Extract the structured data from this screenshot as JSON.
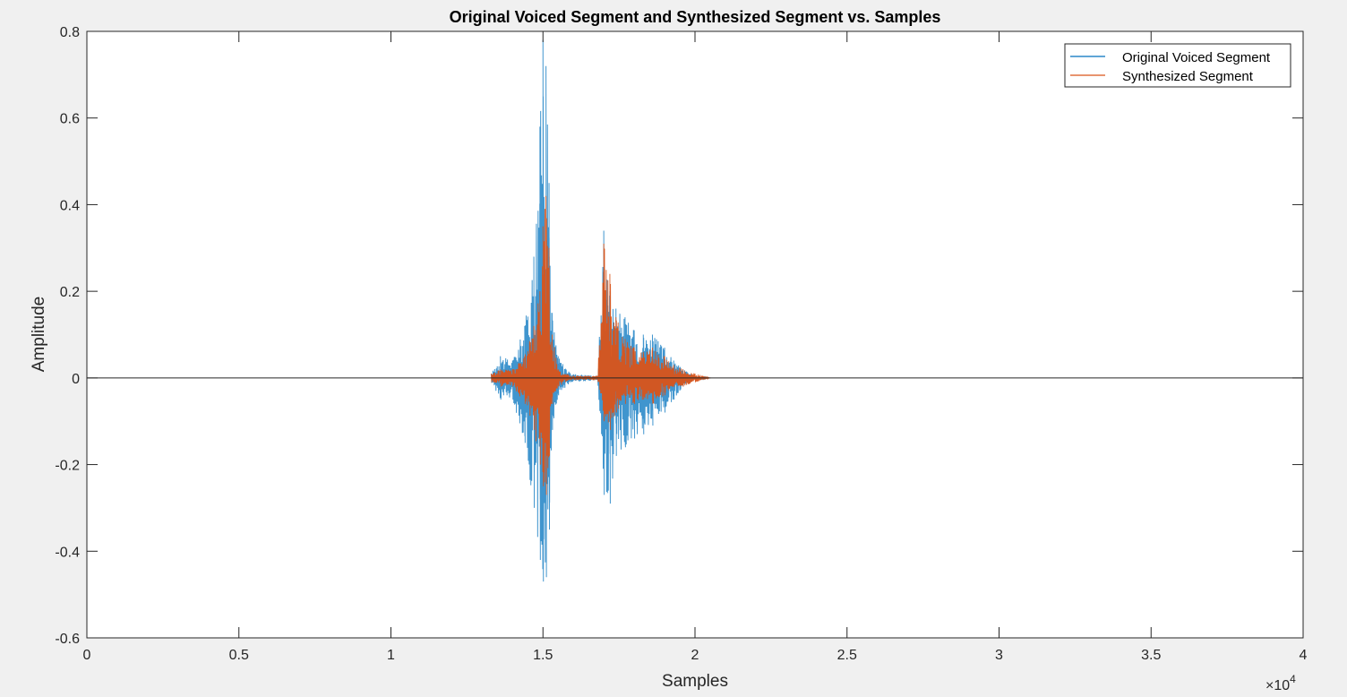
{
  "chart_data": {
    "type": "line",
    "title": "Original Voiced Segment and Synthesized Segment vs. Samples",
    "xlabel": "Samples",
    "ylabel": "Amplitude",
    "xlim": [
      0,
      40000
    ],
    "ylim": [
      -0.6,
      0.8
    ],
    "x_exponent_label": "×10",
    "x_exponent_power": "4",
    "x_ticks": [
      0,
      5000,
      10000,
      15000,
      20000,
      25000,
      30000,
      35000,
      40000
    ],
    "x_tick_labels": [
      "0",
      "0.5",
      "1",
      "1.5",
      "2",
      "2.5",
      "3",
      "3.5",
      "4"
    ],
    "y_ticks": [
      -0.6,
      -0.4,
      -0.2,
      0,
      0.2,
      0.4,
      0.6,
      0.8
    ],
    "y_tick_labels": [
      "-0.6",
      "-0.4",
      "-0.2",
      "0",
      "0.2",
      "0.4",
      "0.6",
      "0.8"
    ],
    "grid": false,
    "legend_position": "top-right",
    "series": [
      {
        "name": "Original Voiced Segment",
        "color": "#0072BD",
        "x": [
          13300,
          13600,
          14000,
          14400,
          14700,
          14900,
          15000,
          15100,
          15200,
          15300,
          15500,
          15900,
          16800,
          17000,
          17200,
          17400,
          17700,
          18000,
          18300,
          18600,
          19000,
          19300,
          19600,
          20000,
          20500
        ],
        "y_max": [
          0.01,
          0.05,
          0.04,
          0.12,
          0.28,
          0.58,
          0.78,
          0.72,
          0.45,
          0.15,
          0.05,
          0.01,
          0.005,
          0.34,
          0.2,
          0.16,
          0.14,
          0.11,
          0.1,
          0.1,
          0.07,
          0.04,
          0.02,
          0.005,
          0
        ],
        "y_min": [
          -0.01,
          -0.05,
          -0.05,
          -0.15,
          -0.3,
          -0.42,
          -0.47,
          -0.46,
          -0.35,
          -0.12,
          -0.04,
          -0.01,
          -0.005,
          -0.27,
          -0.29,
          -0.18,
          -0.16,
          -0.14,
          -0.13,
          -0.11,
          -0.08,
          -0.05,
          -0.02,
          -0.005,
          0
        ]
      },
      {
        "name": "Synthesized Segment",
        "color": "#D95319",
        "x": [
          13300,
          13600,
          14000,
          14400,
          14700,
          14900,
          15000,
          15100,
          15200,
          15300,
          15500,
          15900,
          16800,
          17000,
          17200,
          17400,
          17700,
          18000,
          18300,
          18600,
          19000,
          19300,
          19600,
          20000,
          20500
        ],
        "y_max": [
          0.01,
          0.02,
          0.02,
          0.05,
          0.12,
          0.2,
          0.35,
          0.42,
          0.3,
          0.1,
          0.02,
          0.005,
          0.005,
          0.31,
          0.24,
          0.14,
          0.09,
          0.07,
          0.06,
          0.07,
          0.05,
          0.03,
          0.02,
          0.01,
          0
        ],
        "y_min": [
          -0.01,
          -0.02,
          -0.02,
          -0.06,
          -0.12,
          -0.2,
          -0.25,
          -0.27,
          -0.18,
          -0.06,
          -0.02,
          -0.005,
          -0.005,
          -0.1,
          -0.12,
          -0.08,
          -0.06,
          -0.06,
          -0.05,
          -0.06,
          -0.04,
          -0.02,
          -0.02,
          -0.01,
          0
        ]
      }
    ]
  }
}
